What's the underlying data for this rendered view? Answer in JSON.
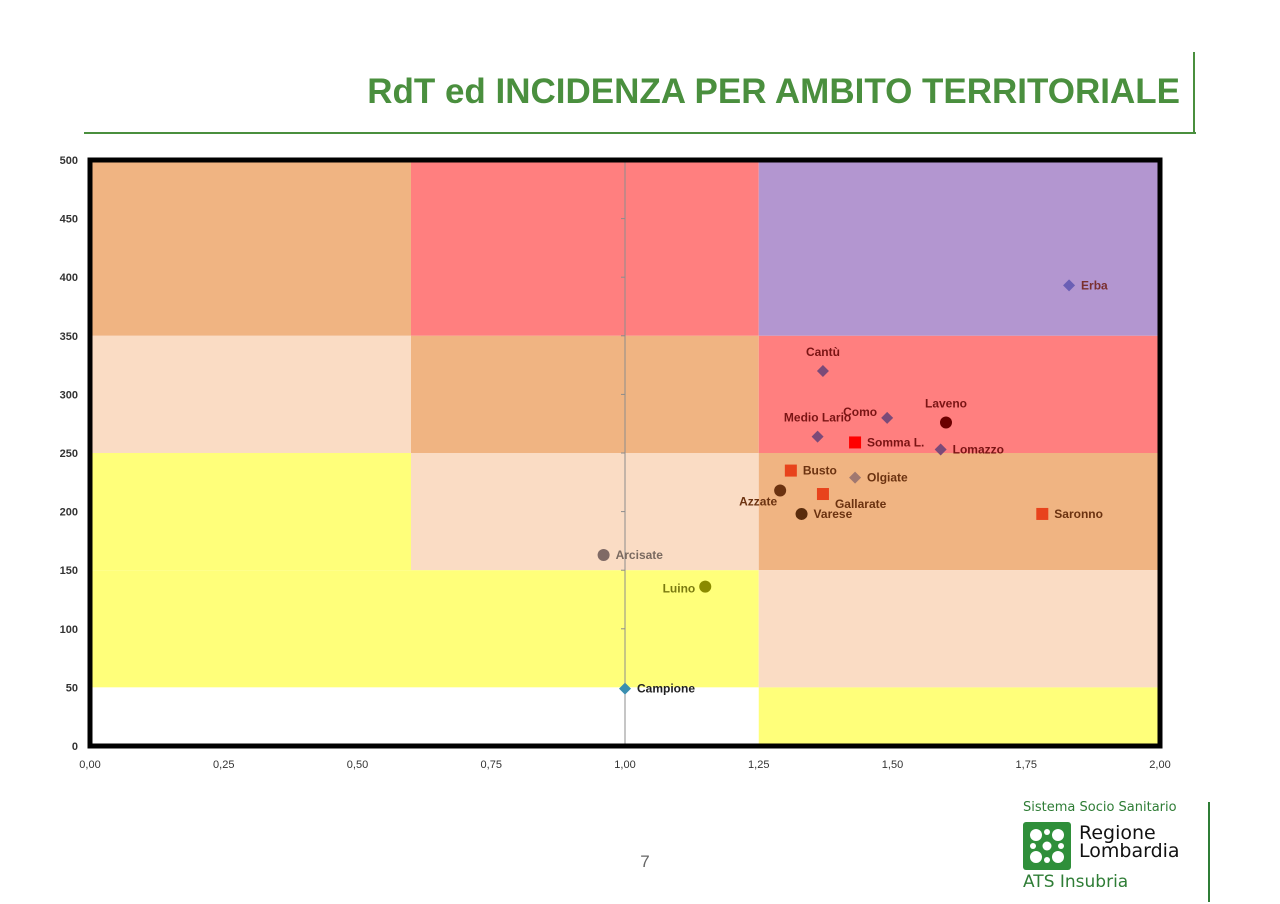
{
  "slide": {
    "title": "RdT ed INCIDENZA PER AMBITO TERRITORIALE",
    "page_number": "7"
  },
  "logo": {
    "system_text": "Sistema Socio Sanitario",
    "region_line1": "Regione",
    "region_line2": "Lombardia",
    "ats_text": "ATS Insubria",
    "icon": "regione-lombardia-rosa-camuna-icon",
    "color": "#2f8f3a"
  },
  "chart_data": {
    "type": "scatter",
    "title": "",
    "xlabel": "",
    "ylabel": "",
    "xlim": [
      0,
      2
    ],
    "ylim": [
      0,
      500
    ],
    "x_ticks": [
      "0,00",
      "0,25",
      "0,50",
      "0,75",
      "1,00",
      "1,25",
      "1,50",
      "1,75",
      "2,00"
    ],
    "y_ticks": [
      "0",
      "50",
      "100",
      "150",
      "200",
      "250",
      "300",
      "350",
      "400",
      "450",
      "500"
    ],
    "grid": false,
    "legend": "none",
    "reference_line_x": 1.0,
    "zones": [
      {
        "x": [
          0,
          0.6
        ],
        "y": [
          350,
          500
        ],
        "color": "#f0b482"
      },
      {
        "x": [
          0.6,
          1.25
        ],
        "y": [
          350,
          500
        ],
        "color": "#ff7f7f"
      },
      {
        "x": [
          1.25,
          2.0
        ],
        "y": [
          350,
          500
        ],
        "color": "#b396d0"
      },
      {
        "x": [
          0,
          0.6
        ],
        "y": [
          250,
          350
        ],
        "color": "#fadcc4"
      },
      {
        "x": [
          0.6,
          1.25
        ],
        "y": [
          250,
          350
        ],
        "color": "#f0b482"
      },
      {
        "x": [
          1.25,
          2.0
        ],
        "y": [
          250,
          350
        ],
        "color": "#ff7f7f"
      },
      {
        "x": [
          0,
          0.6
        ],
        "y": [
          150,
          250
        ],
        "color": "#ffff7a"
      },
      {
        "x": [
          0.6,
          1.25
        ],
        "y": [
          150,
          250
        ],
        "color": "#fadcc4"
      },
      {
        "x": [
          1.25,
          2.0
        ],
        "y": [
          150,
          250
        ],
        "color": "#f0b482"
      },
      {
        "x": [
          0,
          1.25
        ],
        "y": [
          50,
          150
        ],
        "color": "#ffff7a"
      },
      {
        "x": [
          1.25,
          2.0
        ],
        "y": [
          50,
          150
        ],
        "color": "#fadcc4"
      },
      {
        "x": [
          0,
          1.25
        ],
        "y": [
          0,
          50
        ],
        "color": "#ffffff"
      },
      {
        "x": [
          1.25,
          2.0
        ],
        "y": [
          0,
          50
        ],
        "color": "#ffff7a"
      }
    ],
    "points": [
      {
        "label": "Erba",
        "x": 1.83,
        "y": 393,
        "marker": "diamond",
        "color": "#6b5fb5",
        "label_color": "#7a2f2f",
        "label_pos": "right"
      },
      {
        "label": "Cantù",
        "x": 1.37,
        "y": 320,
        "marker": "diamond",
        "color": "#7b4a78",
        "label_color": "#7a1414",
        "label_pos": "top"
      },
      {
        "label": "Como",
        "x": 1.49,
        "y": 280,
        "marker": "diamond",
        "color": "#7b4a78",
        "label_color": "#7a1414",
        "label_pos": "left"
      },
      {
        "label": "Laveno",
        "x": 1.6,
        "y": 276,
        "marker": "circle",
        "color": "#6b0000",
        "label_color": "#7a1414",
        "label_pos": "top"
      },
      {
        "label": "Medio Lario",
        "x": 1.36,
        "y": 264,
        "marker": "diamond",
        "color": "#7b4a78",
        "label_color": "#7a1414",
        "label_pos": "top"
      },
      {
        "label": "Somma L.",
        "x": 1.43,
        "y": 259,
        "marker": "square",
        "color": "#ff0000",
        "label_color": "#7a1414",
        "label_pos": "right"
      },
      {
        "label": "Lomazzo",
        "x": 1.59,
        "y": 253,
        "marker": "diamond",
        "color": "#7b4a78",
        "label_color": "#7a1414",
        "label_pos": "right"
      },
      {
        "label": "Busto",
        "x": 1.31,
        "y": 235,
        "marker": "square",
        "color": "#e8431c",
        "label_color": "#6b3210",
        "label_pos": "right"
      },
      {
        "label": "Olgiate",
        "x": 1.43,
        "y": 229,
        "marker": "diamond",
        "color": "#a07870",
        "label_color": "#6b3210",
        "label_pos": "right"
      },
      {
        "label": "Azzate",
        "x": 1.29,
        "y": 218,
        "marker": "circle",
        "color": "#6b3210",
        "label_color": "#6b3210",
        "label_pos": "bottom-left"
      },
      {
        "label": "Gallarate",
        "x": 1.37,
        "y": 215,
        "marker": "square",
        "color": "#e8431c",
        "label_color": "#6b3210",
        "label_pos": "bottom-right"
      },
      {
        "label": "Varese",
        "x": 1.33,
        "y": 198,
        "marker": "circle",
        "color": "#5a2c0c",
        "label_color": "#6b3210",
        "label_pos": "right"
      },
      {
        "label": "Saronno",
        "x": 1.78,
        "y": 198,
        "marker": "square",
        "color": "#e8431c",
        "label_color": "#6b3210",
        "label_pos": "right"
      },
      {
        "label": "Arcisate",
        "x": 0.96,
        "y": 163,
        "marker": "circle",
        "color": "#7f6a66",
        "label_color": "#7a6a60",
        "label_pos": "right"
      },
      {
        "label": "Luino",
        "x": 1.15,
        "y": 136,
        "marker": "circle",
        "color": "#8a8a00",
        "label_color": "#7a7a10",
        "label_pos": "left"
      },
      {
        "label": "Campione",
        "x": 1.0,
        "y": 49,
        "marker": "diamond",
        "color": "#3a8fb0",
        "label_color": "#222222",
        "label_pos": "right"
      }
    ]
  }
}
